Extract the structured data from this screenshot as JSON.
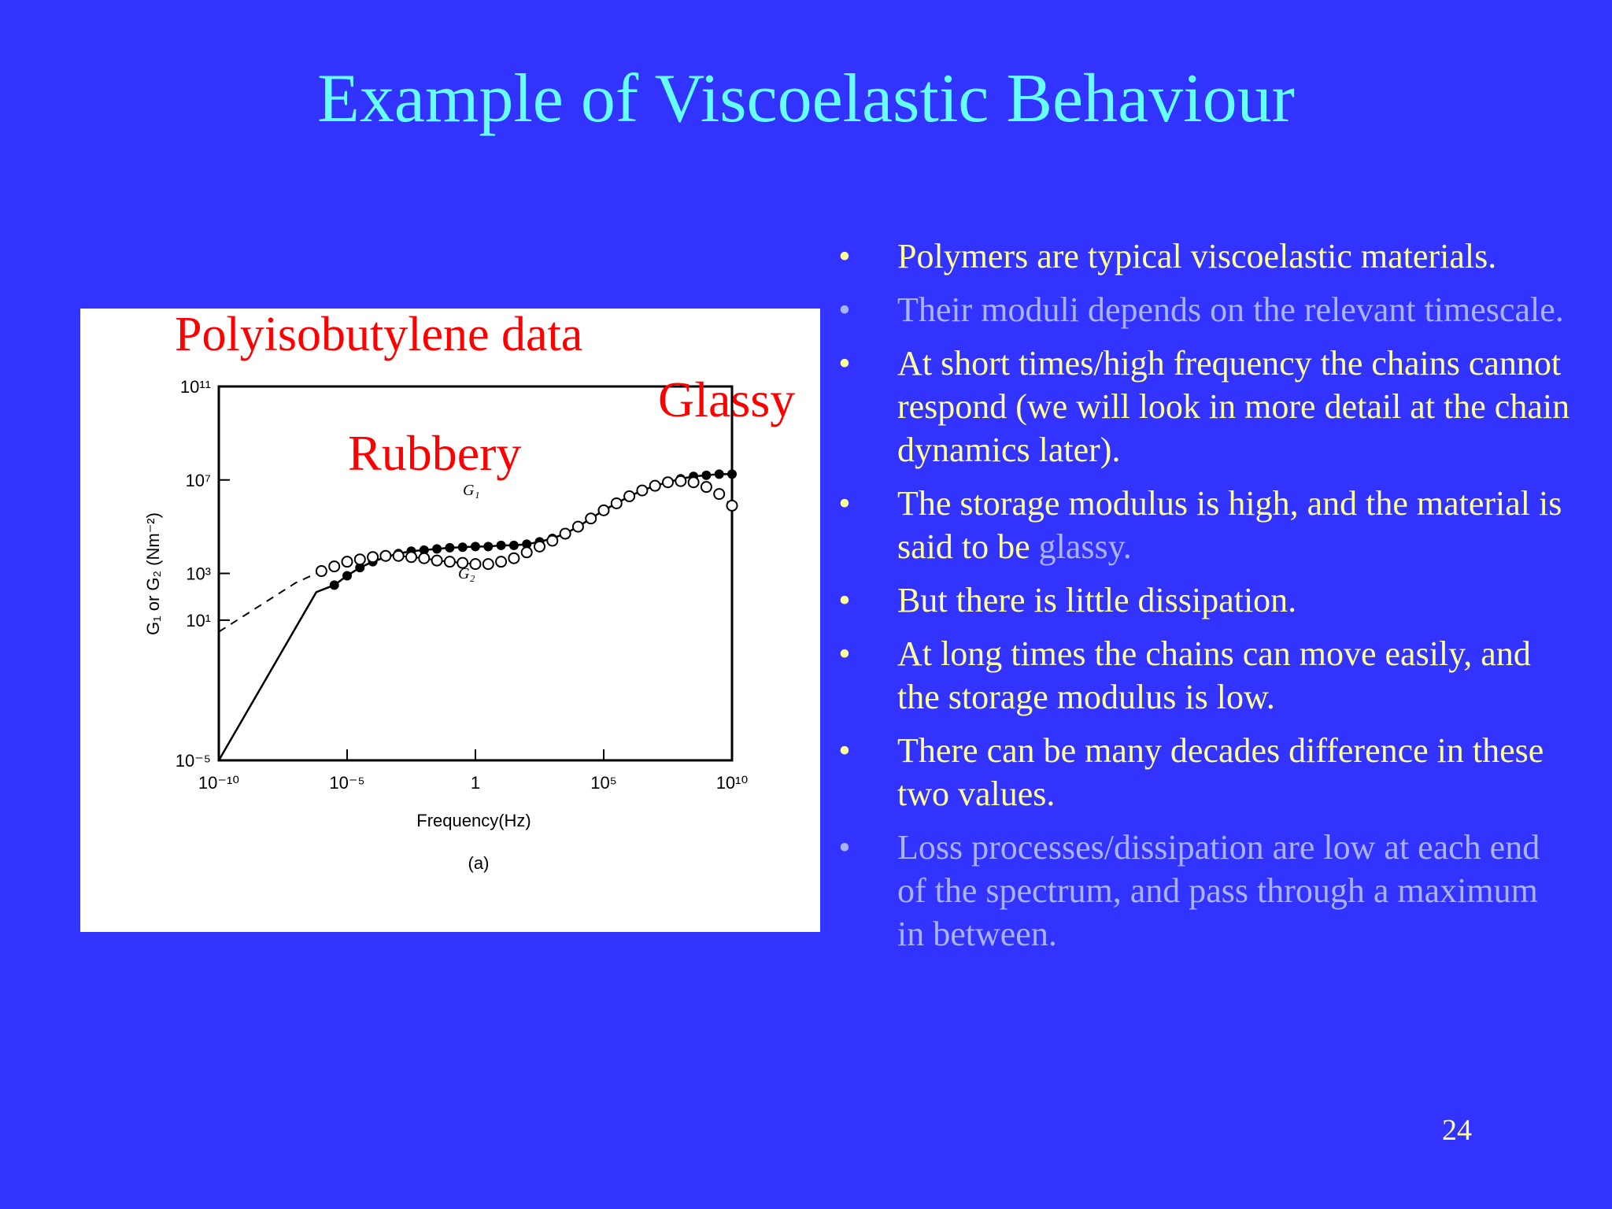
{
  "title": "Example of Viscoelastic Behaviour",
  "figure": {
    "caption": "Polyisobutylene data",
    "rubbery_label": "Rubbery",
    "glassy_label": "Glassy",
    "y_axis_label": "G₁ or G₂ (Nm⁻²)",
    "x_axis_label": "Frequency(Hz)",
    "panel_label": "(a)",
    "y_ticks": [
      "10⁻⁵",
      "10¹",
      "10³",
      "10⁷",
      "10¹¹"
    ],
    "x_ticks": [
      "10⁻¹⁰",
      "10⁻⁵",
      "1",
      "10⁵",
      "10¹⁰"
    ],
    "curve_labels": {
      "g1": "G₁",
      "g2": "G₂"
    }
  },
  "chart_data": {
    "type": "scatter",
    "title": "Polyisobutylene data",
    "xlabel": "Frequency(Hz)",
    "ylabel": "G₁ or G₂ (Nm⁻²)",
    "x_scale": "log",
    "y_scale": "log",
    "xlim_log10": [
      -10,
      10
    ],
    "ylim_log10": [
      -5,
      11
    ],
    "series": [
      {
        "name": "G₁",
        "marker": "filled",
        "log10_x": [
          -5.5,
          -5,
          -4.5,
          -4,
          -3.5,
          -3,
          -2.5,
          -2,
          -1.5,
          -1,
          -0.5,
          0,
          0.5,
          1,
          1.5,
          2,
          2.5,
          3,
          3.5,
          4,
          4.5,
          5,
          5.5,
          6,
          6.5,
          7,
          7.5,
          8,
          8.5,
          9,
          9.5,
          10
        ],
        "log10_y": [
          2.5,
          2.9,
          3.25,
          3.5,
          3.7,
          3.85,
          3.95,
          4.0,
          4.05,
          4.1,
          4.12,
          4.15,
          4.15,
          4.2,
          4.2,
          4.25,
          4.35,
          4.5,
          4.7,
          5.0,
          5.35,
          5.7,
          6.0,
          6.3,
          6.55,
          6.75,
          6.9,
          7.05,
          7.15,
          7.2,
          7.25,
          7.25
        ]
      },
      {
        "name": "G₂",
        "marker": "open",
        "log10_x": [
          -6,
          -5.5,
          -5,
          -4.5,
          -4,
          -3.5,
          -3,
          -2.5,
          -2,
          -1.5,
          -1,
          -0.5,
          0,
          0.5,
          1,
          1.5,
          2,
          2.5,
          3,
          3.5,
          4,
          4.5,
          5,
          5.5,
          6,
          6.5,
          7,
          7.5,
          8,
          8.5,
          9,
          9.5,
          10
        ],
        "log10_y": [
          3.1,
          3.3,
          3.5,
          3.6,
          3.7,
          3.75,
          3.75,
          3.7,
          3.65,
          3.55,
          3.5,
          3.45,
          3.4,
          3.4,
          3.5,
          3.65,
          3.9,
          4.15,
          4.4,
          4.7,
          5.0,
          5.35,
          5.7,
          6.0,
          6.3,
          6.55,
          6.75,
          6.9,
          6.95,
          6.9,
          6.7,
          6.4,
          5.9
        ]
      }
    ]
  },
  "bullets": [
    {
      "marker": "•",
      "text": "Polymers are typical viscoelastic materials.",
      "color": "yellow"
    },
    {
      "marker": "•",
      "text": "Their moduli depends on the relevant timescale.",
      "color": "muted"
    },
    {
      "marker": "•",
      "text": "At short times/high frequency the chains cannot respond (we will look in more detail at the  chain dynamics later).",
      "color": "yellow"
    },
    {
      "marker": "•",
      "text": "The storage modulus is high, and the material is said to be ",
      "extra": "glassy.",
      "color": "yellow"
    },
    {
      "marker": "•",
      "text": "But there is little dissipation.",
      "color": "yellow"
    },
    {
      "marker": "•",
      "text": "At long times the chains can move easily, and the storage modulus is low.",
      "color": "yellow"
    },
    {
      "marker": "•",
      "text": "There can be many decades difference in these two values.",
      "color": "yellow"
    },
    {
      "marker": "•",
      "text": "Loss processes/dissipation are low at each end of the spectrum, and pass through a maximum in between.",
      "color": "muted"
    }
  ],
  "page_number": "24",
  "colors": {
    "background": "#3333ff",
    "title": "#66ffff",
    "bullet_text": "#ffff99",
    "muted_text": "#aab3ff",
    "annotation": "#ff0000"
  }
}
